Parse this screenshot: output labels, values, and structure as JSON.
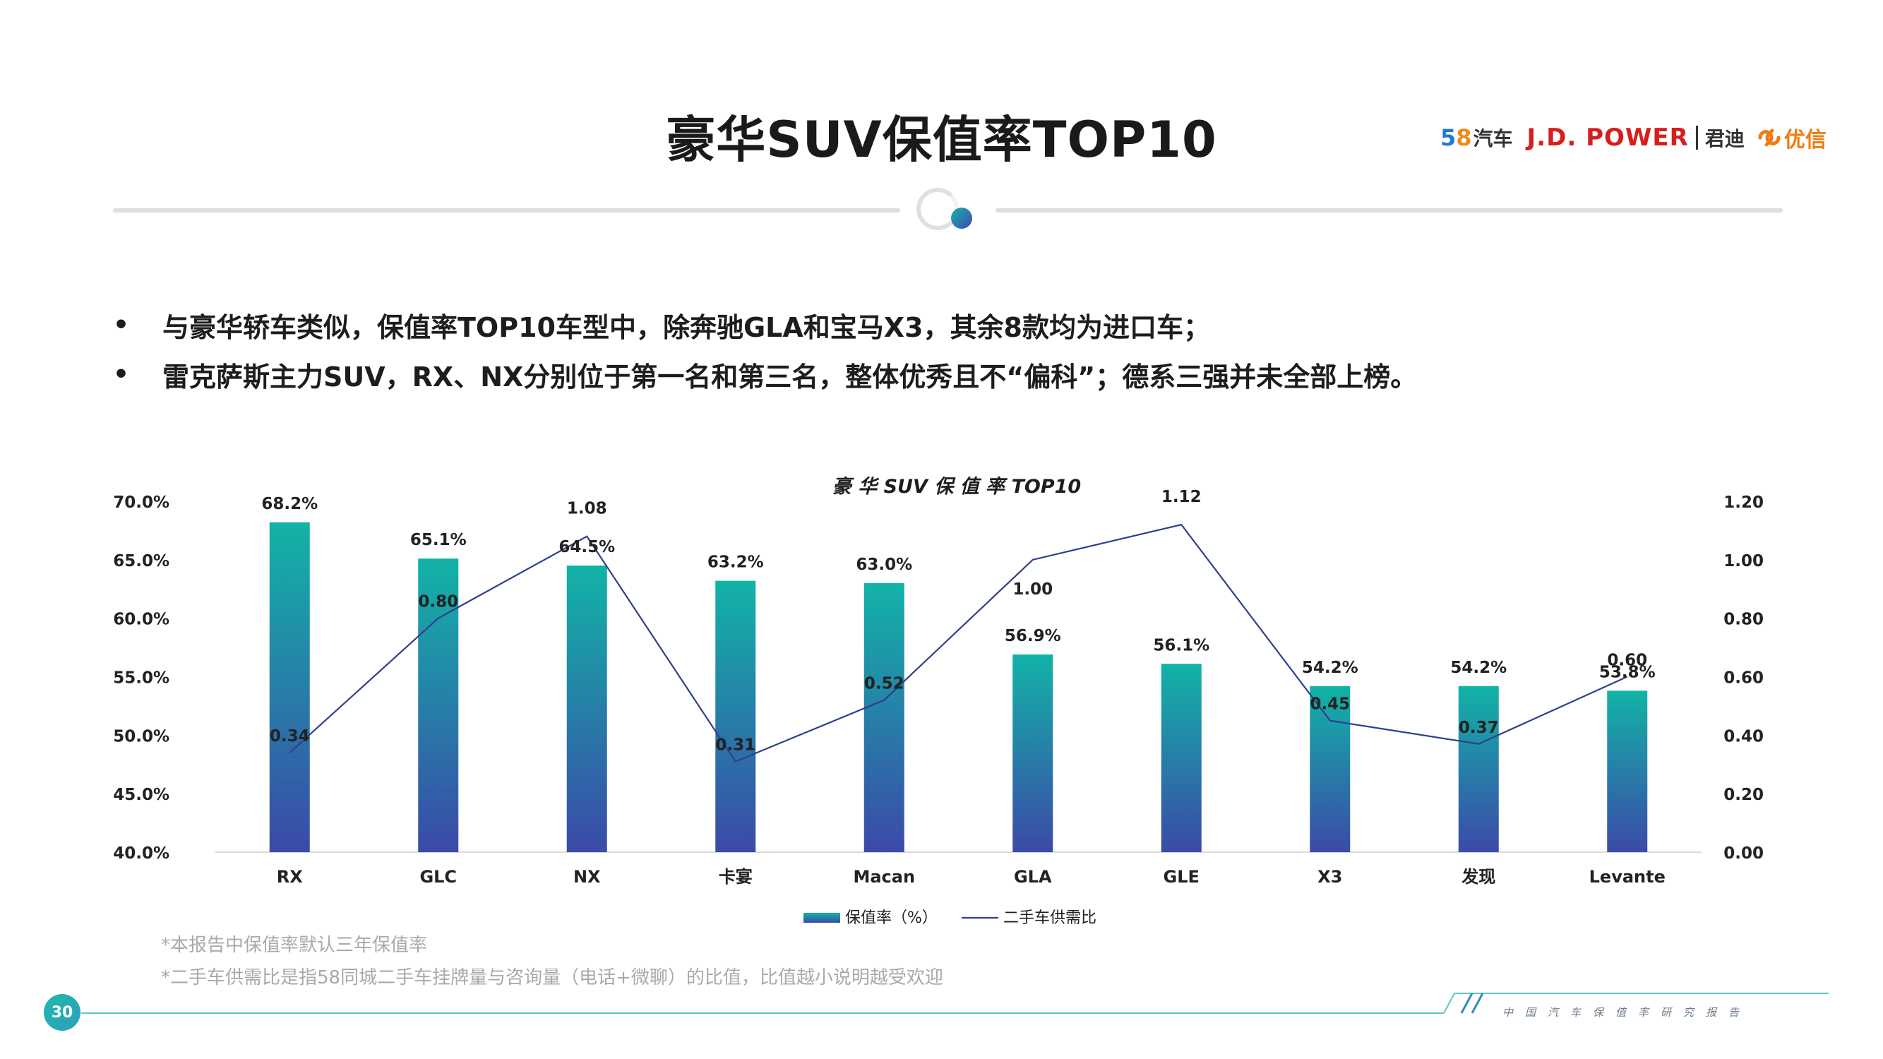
{
  "title": "豪华SUV保值率TOP10",
  "logos": {
    "logo_58_a": "5",
    "logo_58_b": "8",
    "logo_58_c": "汽车",
    "jd_power": "J.D. POWER",
    "jundi": "君迪",
    "youxin": "优信"
  },
  "bullets": [
    "与豪华轿车类似，保值率TOP10车型中，除奔驰GLA和宝马X3，其余8款均为进口车；",
    "雷克萨斯主力SUV，RX、NX分别位于第一名和第三名，整体优秀且不“偏科”；德系三强并未全部上榜。"
  ],
  "bullet_symbol": "•",
  "chart_data": {
    "type": "bar",
    "title": "豪 华 SUV 保 值 率 TOP10",
    "categories": [
      "RX",
      "GLC",
      "NX",
      "卡宴",
      "Macan",
      "GLA",
      "GLE",
      "X3",
      "发现",
      "Levante"
    ],
    "series": [
      {
        "name": "保值率（%）",
        "type": "bar",
        "axis": "left",
        "values": [
          68.2,
          65.1,
          64.5,
          63.2,
          63.0,
          56.9,
          56.1,
          54.2,
          54.2,
          53.8
        ],
        "labels": [
          "68.2%",
          "65.1%",
          "64.5%",
          "63.2%",
          "63.0%",
          "56.9%",
          "56.1%",
          "54.2%",
          "54.2%",
          "53.8%"
        ]
      },
      {
        "name": "二手车供需比",
        "type": "line",
        "axis": "right",
        "values": [
          0.34,
          0.8,
          1.08,
          0.31,
          0.52,
          1.0,
          1.12,
          0.45,
          0.37,
          0.6
        ],
        "labels": [
          "0.34",
          "0.80",
          "1.08",
          "0.31",
          "0.52",
          "1.00",
          "1.12",
          "0.45",
          "0.37",
          "0.60"
        ]
      }
    ],
    "ylim_left": [
      40,
      70
    ],
    "ylim_right": [
      0,
      1.2
    ],
    "left_ticks": [
      "40.0%",
      "45.0%",
      "50.0%",
      "55.0%",
      "60.0%",
      "65.0%",
      "70.0%"
    ],
    "right_ticks": [
      "0.00",
      "0.20",
      "0.40",
      "0.60",
      "0.80",
      "1.00",
      "1.20"
    ],
    "legend_position": "bottom",
    "grid": false,
    "colors": {
      "bar_top": "#12b3a7",
      "bar_bottom": "#3b4aa8",
      "line": "#2f3f8f"
    }
  },
  "footnotes": [
    "*本报告中保值率默认三年保值率",
    "*二手车供需比是指58同城二手车挂牌量与咨询量（电话+微聊）的比值，比值越小说明越受欢迎"
  ],
  "page_number": "30",
  "footer_slogan": "中国汽车保值率研究报告",
  "colors": {
    "accent_teal": "#1ab0a8",
    "accent_blue": "#3f4bb0"
  }
}
